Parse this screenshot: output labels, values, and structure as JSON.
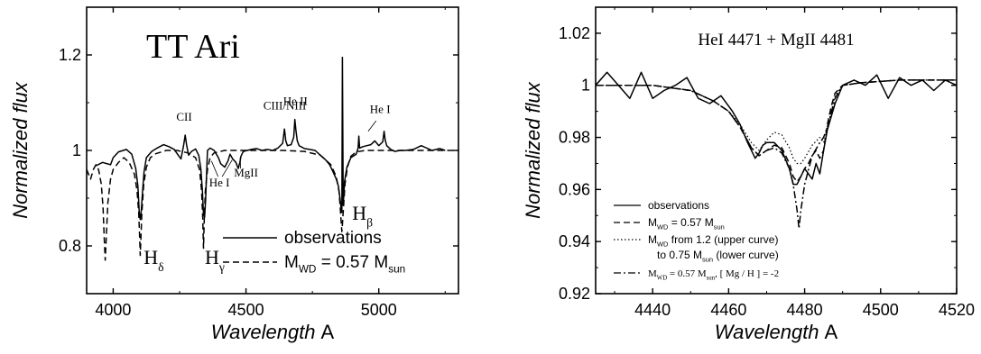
{
  "chart_data": [
    {
      "type": "line",
      "title": "TT Ari",
      "xlabel": "Wavelength",
      "xunit": "A",
      "ylabel": "Normalized flux",
      "xlim": [
        3900,
        5300
      ],
      "ylim": [
        0.7,
        1.3
      ],
      "xticks": [
        4000,
        4500,
        5000
      ],
      "yticks": [
        0.8,
        1.0,
        1.2
      ],
      "grid": false,
      "legend_position": "bottom-right",
      "legend": [
        {
          "style": "solid",
          "label": "observations"
        },
        {
          "style": "dashed",
          "parts": [
            "M",
            "WD",
            " = 0.57 M",
            "sun"
          ]
        }
      ],
      "line_annotations": [
        {
          "text": "CII",
          "x": 4267,
          "y": 1.062
        },
        {
          "text": "CIII/NIII",
          "x": 4646,
          "y": 1.086
        },
        {
          "text": "He II",
          "x": 4686,
          "y": 1.095
        },
        {
          "text": "He I",
          "x": 5005,
          "y": 1.078
        },
        {
          "text": "He I",
          "x": 4400,
          "y": 0.925
        },
        {
          "text": "MgII",
          "x": 4500,
          "y": 0.945
        }
      ],
      "balmer_labels": [
        {
          "base": "H",
          "sub": "δ",
          "x": 4115,
          "y": 0.762
        },
        {
          "base": "H",
          "sub": "γ",
          "x": 4345,
          "y": 0.762
        },
        {
          "base": "H",
          "sub": "β",
          "x": 4900,
          "y": 0.855
        }
      ],
      "series": [
        {
          "name": "observations",
          "style": "solid",
          "x": [
            3935,
            3960,
            3990,
            4000,
            4020,
            4050,
            4070,
            4085,
            4093,
            4098,
            4102,
            4106,
            4111,
            4116,
            4125,
            4145,
            4165,
            4190,
            4210,
            4230,
            4245,
            4255,
            4265,
            4271,
            4276,
            4284,
            4295,
            4310,
            4322,
            4330,
            4336,
            4340,
            4344,
            4348,
            4355,
            4365,
            4380,
            4396,
            4405,
            4420,
            4432,
            4440,
            4450,
            4462,
            4471,
            4477,
            4481,
            4490,
            4505,
            4520,
            4540,
            4560,
            4580,
            4600,
            4620,
            4638,
            4645,
            4650,
            4656,
            4670,
            4680,
            4684,
            4688,
            4693,
            4700,
            4720,
            4740,
            4760,
            4780,
            4800,
            4815,
            4828,
            4840,
            4848,
            4854,
            4858,
            4861,
            4863,
            4866,
            4871,
            4880,
            4895,
            4915,
            4922,
            4925,
            4928,
            4940,
            4955,
            4970,
            4985,
            5000,
            5015,
            5020,
            5024,
            5030,
            5045,
            5060,
            5080,
            5100,
            5130,
            5160,
            5200,
            5230,
            5250
          ],
          "y": [
            0.968,
            0.975,
            0.97,
            0.985,
            0.997,
            1.002,
            0.992,
            0.962,
            0.925,
            0.87,
            0.855,
            0.875,
            0.918,
            0.955,
            0.985,
            0.998,
            1.005,
            1.012,
            1.008,
            1.002,
            0.99,
            0.982,
            1.01,
            1.032,
            1.012,
            0.99,
            0.998,
            1.003,
            0.99,
            0.962,
            0.915,
            0.865,
            0.86,
            0.895,
            1.0,
            1.005,
            1.0,
            0.985,
            0.972,
            0.965,
            0.978,
            0.992,
            0.982,
            0.975,
            0.962,
            0.975,
            0.988,
            0.998,
            1.0,
            1.002,
            1.004,
            1.0,
            1.002,
            1.0,
            1.005,
            1.015,
            1.045,
            1.02,
            1.01,
            1.012,
            1.028,
            1.065,
            1.042,
            1.02,
            1.01,
            1.004,
            1.002,
            1.0,
            0.99,
            0.98,
            0.97,
            0.955,
            0.94,
            0.925,
            0.9,
            0.88,
            0.87,
            1.195,
            0.885,
            0.935,
            0.965,
            0.985,
            0.992,
            1.005,
            1.03,
            1.005,
            1.008,
            1.01,
            1.012,
            1.02,
            1.01,
            1.018,
            1.04,
            1.022,
            1.01,
            1.002,
            0.998,
            1.0,
            1.0,
            1.002,
            1.01,
            1.0,
            1.004,
            1.0
          ]
        },
        {
          "name": "M WD = 0.57 M sun",
          "style": "dashed",
          "x": [
            3900,
            3915,
            3925,
            3935,
            3945,
            3955,
            3962,
            3966,
            3970,
            3974,
            3980,
            3990,
            4000,
            4020,
            4040,
            4060,
            4080,
            4090,
            4096,
            4100,
            4102,
            4104,
            4108,
            4115,
            4125,
            4140,
            4160,
            4200,
            4240,
            4280,
            4310,
            4325,
            4333,
            4337,
            4340,
            4343,
            4347,
            4355,
            4365,
            4380,
            4420,
            4460,
            4500,
            4560,
            4640,
            4720,
            4780,
            4820,
            4840,
            4850,
            4855,
            4859,
            4861,
            4863,
            4867,
            4873,
            4882,
            4895,
            4915,
            4950,
            5000,
            5100,
            5200,
            5300
          ],
          "y": [
            0.96,
            0.94,
            0.96,
            0.97,
            0.96,
            0.93,
            0.88,
            0.82,
            0.77,
            0.82,
            0.89,
            0.94,
            0.96,
            0.975,
            0.985,
            0.975,
            0.95,
            0.915,
            0.87,
            0.81,
            0.78,
            0.81,
            0.87,
            0.93,
            0.965,
            0.985,
            0.993,
            1.0,
            1.0,
            0.995,
            0.985,
            0.96,
            0.915,
            0.86,
            0.795,
            0.86,
            0.915,
            0.96,
            0.985,
            0.995,
            1.0,
            1.0,
            1.0,
            1.0,
            1.0,
            0.998,
            0.99,
            0.97,
            0.945,
            0.915,
            0.88,
            0.845,
            0.83,
            0.845,
            0.88,
            0.93,
            0.965,
            0.988,
            0.997,
            1.0,
            1.0,
            1.0,
            1.0,
            1.0
          ]
        }
      ]
    },
    {
      "type": "line",
      "title": "HeI 4471 + MgII 4481",
      "xlabel": "Wavelength",
      "xunit": "A",
      "ylabel": "Normalized flux",
      "xlim": [
        4425,
        4520
      ],
      "ylim": [
        0.92,
        1.03
      ],
      "xticks": [
        4440,
        4460,
        4480,
        4500,
        4520
      ],
      "yticks": [
        0.92,
        0.94,
        0.96,
        0.98,
        1.0,
        1.02
      ],
      "grid": false,
      "legend_position": "bottom-left",
      "legend": [
        {
          "style": "solid",
          "label": "observations"
        },
        {
          "style": "dashed",
          "parts": [
            "M",
            "WD",
            " = 0.57 M",
            "sun"
          ]
        },
        {
          "style": "dotted",
          "parts": [
            "M",
            "WD",
            " from 1.2 (upper curve)"
          ],
          "line2_parts": [
            "to 0.75 M",
            "sun",
            " (lower curve)"
          ]
        },
        {
          "style": "dashdot",
          "parts": [
            "M",
            "WD",
            " = 0.57 M",
            "sun",
            ", [ Mg / H ] = -2"
          ]
        }
      ],
      "series": [
        {
          "name": "observations",
          "style": "solid",
          "x": [
            4425,
            4428,
            4431,
            4434,
            4437,
            4440,
            4443,
            4446,
            4449,
            4452,
            4455,
            4458,
            4461,
            4463,
            4465,
            4467,
            4468,
            4469,
            4470,
            4472,
            4474,
            4476,
            4477,
            4478,
            4479,
            4480,
            4481,
            4482,
            4483,
            4484,
            4485,
            4486,
            4488,
            4490,
            4493,
            4496,
            4499,
            4502,
            4505,
            4508,
            4511,
            4514,
            4517,
            4520
          ],
          "y": [
            1.0,
            1.005,
            1.0,
            0.995,
            1.005,
            0.995,
            0.998,
            1.0,
            1.003,
            0.995,
            0.993,
            0.996,
            0.99,
            0.985,
            0.978,
            0.972,
            0.974,
            0.977,
            0.978,
            0.978,
            0.975,
            0.968,
            0.962,
            0.962,
            0.965,
            0.968,
            0.966,
            0.964,
            0.97,
            0.966,
            0.975,
            0.983,
            0.993,
            1.0,
            1.002,
            1.0,
            1.004,
            0.995,
            1.003,
            1.0,
            1.002,
            0.998,
            1.002,
            1.0
          ]
        },
        {
          "name": "M WD = 0.57 M sun",
          "style": "dashed",
          "x": [
            4425,
            4440,
            4450,
            4456,
            4460,
            4463,
            4466,
            4468,
            4470,
            4472,
            4474,
            4476,
            4477,
            4478,
            4479,
            4480,
            4481,
            4482,
            4483,
            4484,
            4485,
            4486,
            4487,
            4488,
            4490,
            4495,
            4505,
            4520
          ],
          "y": [
            1.0,
            1.0,
            0.998,
            0.994,
            0.99,
            0.984,
            0.976,
            0.973,
            0.975,
            0.977,
            0.976,
            0.97,
            0.965,
            0.963,
            0.965,
            0.968,
            0.97,
            0.973,
            0.975,
            0.972,
            0.975,
            0.985,
            0.992,
            0.997,
            1.0,
            1.001,
            1.002,
            1.002
          ]
        },
        {
          "name": "M WD from 1.2 (upper curve) to 0.75 M sun (lower curve)",
          "style": "dotted",
          "x": [
            4425,
            4440,
            4450,
            4456,
            4460,
            4463,
            4466,
            4468,
            4470,
            4472,
            4474,
            4476,
            4477,
            4478,
            4479,
            4480,
            4482,
            4484,
            4485,
            4486,
            4487,
            4488,
            4490,
            4495,
            4505,
            4520
          ],
          "y": [
            1.0,
            1.0,
            0.998,
            0.994,
            0.99,
            0.985,
            0.978,
            0.975,
            0.979,
            0.982,
            0.981,
            0.976,
            0.972,
            0.97,
            0.97,
            0.972,
            0.977,
            0.98,
            0.978,
            0.983,
            0.99,
            0.996,
            1.0,
            1.001,
            1.002,
            1.002
          ]
        },
        {
          "name": "M WD = 0.57 M sun, [ Mg / H ] = -2",
          "style": "dashdot",
          "x": [
            4425,
            4440,
            4450,
            4456,
            4460,
            4463,
            4466,
            4468,
            4470,
            4472,
            4474,
            4476,
            4477,
            4478,
            4478.5,
            4479,
            4480,
            4482,
            4484,
            4485,
            4486,
            4488,
            4490,
            4495,
            4505,
            4520
          ],
          "y": [
            1.0,
            1.0,
            0.998,
            0.994,
            0.99,
            0.984,
            0.976,
            0.973,
            0.975,
            0.976,
            0.974,
            0.968,
            0.962,
            0.952,
            0.945,
            0.952,
            0.962,
            0.973,
            0.978,
            0.98,
            0.984,
            0.995,
            1.0,
            1.001,
            1.002,
            1.002
          ]
        }
      ]
    }
  ]
}
